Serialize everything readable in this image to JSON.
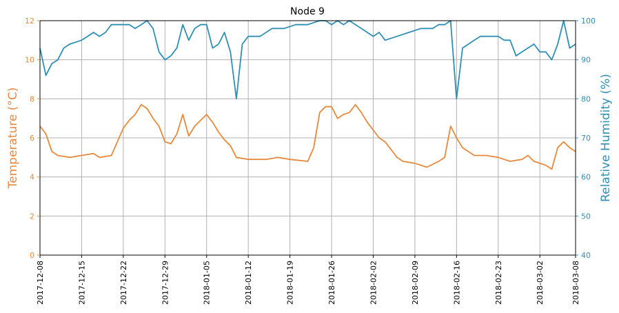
{
  "chart_data": {
    "type": "line",
    "title": "Node 9",
    "x_type": "date",
    "xlim": [
      "2017-12-08",
      "2018-03-08"
    ],
    "x_ticks": [
      "2017-12-08",
      "2017-12-15",
      "2017-12-22",
      "2017-12-29",
      "2018-01-05",
      "2018-01-12",
      "2018-01-19",
      "2018-01-26",
      "2018-02-02",
      "2018-02-09",
      "2018-02-16",
      "2018-02-23",
      "2018-03-02",
      "2018-03-08"
    ],
    "grid": true,
    "left_axis": {
      "label": "Temperature (°C)",
      "ylim": [
        0,
        12
      ],
      "ticks": [
        0,
        2,
        4,
        6,
        8,
        10,
        12
      ],
      "color": "#e8883a"
    },
    "right_axis": {
      "label": "Relative Humidity (%)",
      "ylim": [
        40,
        100
      ],
      "ticks": [
        40,
        50,
        60,
        70,
        80,
        90,
        100
      ],
      "color": "#2e8fb5"
    },
    "series": [
      {
        "axis": "left",
        "color": "#e8883a",
        "x": [
          "2017-12-08",
          "2017-12-09",
          "2017-12-10",
          "2017-12-11",
          "2017-12-13",
          "2017-12-15",
          "2017-12-17",
          "2017-12-18",
          "2017-12-20",
          "2017-12-21",
          "2017-12-22",
          "2017-12-23",
          "2017-12-24",
          "2017-12-25",
          "2017-12-26",
          "2017-12-27",
          "2017-12-28",
          "2017-12-29",
          "2017-12-30",
          "2017-12-31",
          "2018-01-01",
          "2018-01-02",
          "2018-01-03",
          "2018-01-04",
          "2018-01-05",
          "2018-01-06",
          "2018-01-07",
          "2018-01-08",
          "2018-01-09",
          "2018-01-10",
          "2018-01-12",
          "2018-01-15",
          "2018-01-17",
          "2018-01-19",
          "2018-01-22",
          "2018-01-23",
          "2018-01-24",
          "2018-01-25",
          "2018-01-26",
          "2018-01-27",
          "2018-01-28",
          "2018-01-29",
          "2018-01-30",
          "2018-01-31",
          "2018-02-01",
          "2018-02-02",
          "2018-02-03",
          "2018-02-04",
          "2018-02-05",
          "2018-02-06",
          "2018-02-07",
          "2018-02-09",
          "2018-02-10",
          "2018-02-11",
          "2018-02-13",
          "2018-02-14",
          "2018-02-15",
          "2018-02-16",
          "2018-02-17",
          "2018-02-19",
          "2018-02-21",
          "2018-02-23",
          "2018-02-25",
          "2018-02-27",
          "2018-02-28",
          "2018-03-01",
          "2018-03-03",
          "2018-03-04",
          "2018-03-05",
          "2018-03-06",
          "2018-03-07",
          "2018-03-08"
        ],
        "y": [
          6.6,
          6.2,
          5.3,
          5.1,
          5.0,
          5.1,
          5.2,
          5.0,
          5.1,
          5.8,
          6.5,
          6.9,
          7.2,
          7.7,
          7.5,
          7.0,
          6.6,
          5.8,
          5.7,
          6.2,
          7.2,
          6.1,
          6.6,
          6.9,
          7.2,
          6.8,
          6.3,
          5.9,
          5.6,
          5.0,
          4.9,
          4.9,
          5.0,
          4.9,
          4.8,
          5.5,
          7.3,
          7.6,
          7.6,
          7.0,
          7.2,
          7.3,
          7.7,
          7.3,
          6.8,
          6.4,
          6.0,
          5.8,
          5.4,
          5.0,
          4.8,
          4.7,
          4.6,
          4.5,
          4.8,
          5.0,
          6.6,
          6.0,
          5.5,
          5.1,
          5.1,
          5.0,
          4.8,
          4.9,
          5.1,
          4.8,
          4.6,
          4.4,
          5.5,
          5.8,
          5.5,
          5.3
        ]
      },
      {
        "axis": "right",
        "color": "#2e8fb5",
        "x": [
          "2017-12-08",
          "2017-12-09",
          "2017-12-10",
          "2017-12-11",
          "2017-12-12",
          "2017-12-13",
          "2017-12-15",
          "2017-12-16",
          "2017-12-17",
          "2017-12-18",
          "2017-12-19",
          "2017-12-20",
          "2017-12-22",
          "2017-12-23",
          "2017-12-24",
          "2017-12-25",
          "2017-12-26",
          "2017-12-27",
          "2017-12-28",
          "2017-12-29",
          "2017-12-30",
          "2017-12-31",
          "2018-01-01",
          "2018-01-02",
          "2018-01-03",
          "2018-01-04",
          "2018-01-05",
          "2018-01-06",
          "2018-01-07",
          "2018-01-08",
          "2018-01-09",
          "2018-01-10",
          "2018-01-11",
          "2018-01-12",
          "2018-01-14",
          "2018-01-16",
          "2018-01-18",
          "2018-01-20",
          "2018-01-22",
          "2018-01-24",
          "2018-01-25",
          "2018-01-26",
          "2018-01-27",
          "2018-01-28",
          "2018-01-29",
          "2018-01-30",
          "2018-01-31",
          "2018-02-02",
          "2018-02-03",
          "2018-02-04",
          "2018-02-06",
          "2018-02-08",
          "2018-02-10",
          "2018-02-12",
          "2018-02-13",
          "2018-02-14",
          "2018-02-15",
          "2018-02-16",
          "2018-02-17",
          "2018-02-18",
          "2018-02-19",
          "2018-02-20",
          "2018-02-22",
          "2018-02-23",
          "2018-02-24",
          "2018-02-25",
          "2018-02-26",
          "2018-02-27",
          "2018-03-01",
          "2018-03-02",
          "2018-03-03",
          "2018-03-04",
          "2018-03-05",
          "2018-03-06",
          "2018-03-07",
          "2018-03-08"
        ],
        "y": [
          93,
          86,
          89,
          90,
          93,
          94,
          95,
          96,
          97,
          96,
          97,
          99,
          99,
          99,
          98,
          99,
          100,
          98,
          92,
          90,
          91,
          93,
          99,
          95,
          98,
          99,
          99,
          93,
          94,
          97,
          92,
          80,
          94,
          96,
          96,
          98,
          98,
          99,
          99,
          100,
          100,
          99,
          100,
          99,
          100,
          99,
          98,
          96,
          97,
          95,
          96,
          97,
          98,
          98,
          99,
          99,
          100,
          80,
          93,
          94,
          95,
          96,
          96,
          96,
          95,
          95,
          91,
          92,
          94,
          92,
          92,
          90,
          94,
          100,
          93,
          94
        ]
      }
    ]
  }
}
